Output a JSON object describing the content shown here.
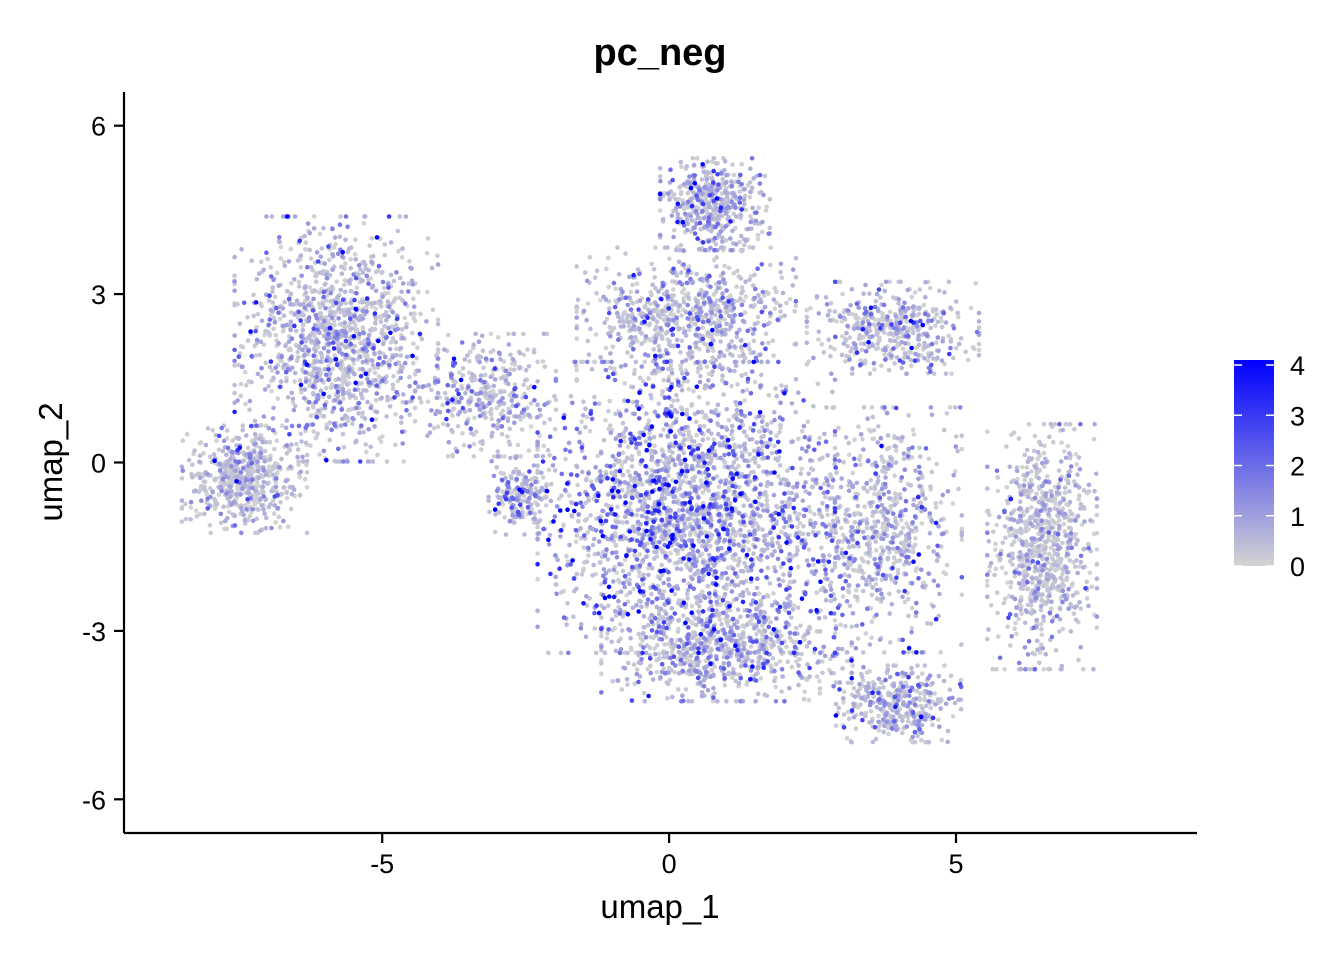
{
  "chart_data": {
    "type": "scatter",
    "title": "pc_neg",
    "xlabel": "umap_1",
    "ylabel": "umap_2",
    "xlim": [
      -9.5,
      9.2
    ],
    "ylim": [
      -6.6,
      6.6
    ],
    "xticks": [
      -5,
      0,
      5
    ],
    "xtick_labels": [
      "-5",
      "0",
      "5"
    ],
    "yticks": [
      -6,
      -3,
      0,
      3,
      6
    ],
    "ytick_labels": [
      "-6",
      "-3",
      "0",
      "3",
      "6"
    ],
    "grid": false,
    "legend_position": "right",
    "color_scale": {
      "low": "#d3d3d3",
      "high": "#0000ff",
      "min": 0,
      "max": 4.1,
      "breaks": [
        0,
        1,
        2,
        3,
        4
      ],
      "break_labels": [
        "0",
        "1",
        "2",
        "3",
        "4"
      ]
    },
    "regions": [
      {
        "name": "left-cluster",
        "center": [
          -5.8,
          2.2
        ],
        "spread": [
          1.3,
          1.6
        ],
        "share": 0.14,
        "mean_value": 0.9
      },
      {
        "name": "far-left-lobe",
        "center": [
          -7.4,
          -0.3
        ],
        "spread": [
          0.8,
          0.7
        ],
        "share": 0.06,
        "mean_value": 0.6
      },
      {
        "name": "left-bridge",
        "center": [
          -3.2,
          1.2
        ],
        "spread": [
          0.9,
          0.8
        ],
        "share": 0.04,
        "mean_value": 1.0
      },
      {
        "name": "top-peak",
        "center": [
          0.8,
          4.6
        ],
        "spread": [
          0.7,
          0.6
        ],
        "share": 0.05,
        "mean_value": 1.1
      },
      {
        "name": "upper-mid",
        "center": [
          0.3,
          2.6
        ],
        "spread": [
          1.4,
          0.9
        ],
        "share": 0.08,
        "mean_value": 0.9
      },
      {
        "name": "center-core",
        "center": [
          0.3,
          -0.8
        ],
        "spread": [
          1.9,
          1.9
        ],
        "share": 0.25,
        "mean_value": 1.4
      },
      {
        "name": "lower-mid",
        "center": [
          1.0,
          -3.3
        ],
        "spread": [
          1.6,
          0.7
        ],
        "share": 0.08,
        "mean_value": 1.0
      },
      {
        "name": "upper-right",
        "center": [
          3.9,
          2.4
        ],
        "spread": [
          1.1,
          0.6
        ],
        "share": 0.05,
        "mean_value": 0.8
      },
      {
        "name": "right-mid",
        "center": [
          3.6,
          -1.2
        ],
        "spread": [
          1.1,
          1.6
        ],
        "share": 0.08,
        "mean_value": 0.9
      },
      {
        "name": "bottom-right",
        "center": [
          4.0,
          -4.3
        ],
        "spread": [
          0.8,
          0.5
        ],
        "share": 0.04,
        "mean_value": 0.9
      },
      {
        "name": "far-right",
        "center": [
          6.5,
          -1.5
        ],
        "spread": [
          0.7,
          1.6
        ],
        "share": 0.09,
        "mean_value": 0.6
      },
      {
        "name": "left-small",
        "center": [
          -2.6,
          -0.6
        ],
        "spread": [
          0.4,
          0.5
        ],
        "share": 0.02,
        "mean_value": 1.1
      }
    ]
  }
}
